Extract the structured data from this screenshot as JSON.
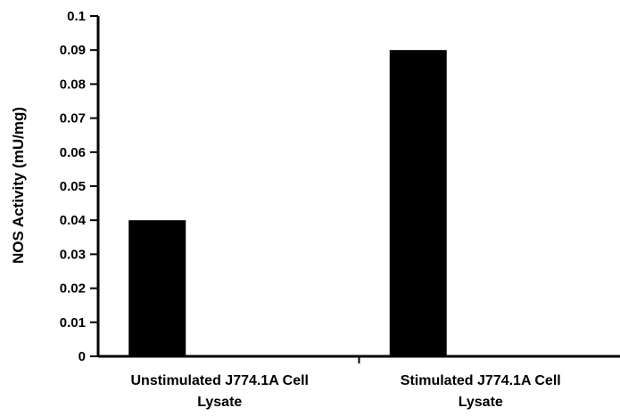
{
  "chart_data": {
    "type": "bar",
    "categories": [
      [
        "Unstimulated J774.1A Cell",
        "Lysate"
      ],
      [
        "Stimulated J774.1A Cell",
        "Lysate"
      ]
    ],
    "values": [
      0.04,
      0.09
    ],
    "ylabel": "NOS Activity (mU/mg)",
    "xlabel": "",
    "ylim": [
      0,
      0.1
    ],
    "yticks": [
      "0",
      "0.01",
      "0.02",
      "0.03",
      "0.04",
      "0.05",
      "0.06",
      "0.07",
      "0.08",
      "0.09",
      "0.1"
    ],
    "bar_color": "#000000",
    "grid": false,
    "legend": "none"
  }
}
